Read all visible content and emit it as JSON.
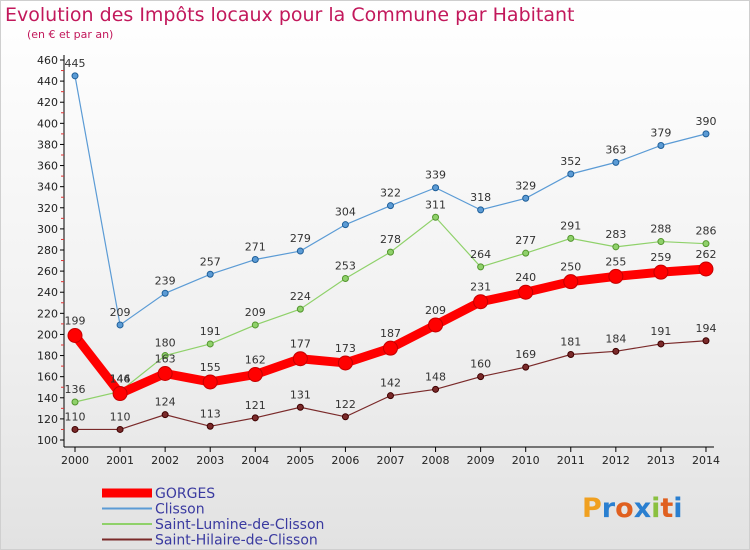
{
  "chart_data": {
    "type": "line",
    "title": "Evolution des Impôts locaux pour la Commune par Habitant",
    "subtitle": "(en € et par an)",
    "x": [
      "2000",
      "2001",
      "2002",
      "2003",
      "2004",
      "2005",
      "2006",
      "2007",
      "2008",
      "2009",
      "2010",
      "2011",
      "2012",
      "2013",
      "2014"
    ],
    "yticks": [
      100,
      120,
      140,
      160,
      180,
      200,
      220,
      240,
      260,
      280,
      300,
      320,
      340,
      360,
      380,
      400,
      420,
      440,
      460
    ],
    "ylim": [
      100,
      460
    ],
    "grid": false,
    "legend_position": "bottom-left",
    "series": [
      {
        "name": "Saint-Hilaire-de-Clisson",
        "color": "#7a2a2a",
        "emphasis": false,
        "values": [
          110,
          110,
          124,
          113,
          121,
          131,
          122,
          142,
          148,
          160,
          169,
          181,
          184,
          191,
          194
        ],
        "labels": [
          "110",
          "110",
          "124",
          "113",
          "121",
          "131",
          "122",
          "142",
          "148",
          "160",
          "169",
          "181",
          "184",
          "191",
          "194"
        ]
      },
      {
        "name": "Saint-Lumine-de-Clisson",
        "color": "#8fd16a",
        "emphasis": false,
        "values": [
          136,
          146,
          180,
          191,
          209,
          224,
          253,
          278,
          311,
          264,
          277,
          291,
          283,
          288,
          286
        ],
        "labels": [
          "136",
          "146",
          "180",
          "191",
          "209",
          "224",
          "253",
          "278",
          "311",
          "264",
          "277",
          "291",
          "283",
          "288",
          "286"
        ]
      },
      {
        "name": "Clisson",
        "color": "#5b9bd5",
        "emphasis": false,
        "values": [
          445,
          209,
          239,
          257,
          271,
          279,
          304,
          322,
          339,
          318,
          329,
          352,
          363,
          379,
          390
        ],
        "labels": [
          "445",
          "209",
          "239",
          "257",
          "271",
          "279",
          "304",
          "322",
          "339",
          "318",
          "329",
          "352",
          "363",
          "379",
          "390"
        ]
      },
      {
        "name": "GORGES",
        "color": "#ff0000",
        "emphasis": true,
        "values": [
          199,
          144,
          163,
          155,
          162,
          177,
          173,
          187,
          209,
          231,
          240,
          250,
          255,
          259,
          262
        ],
        "labels": [
          "199",
          "144",
          "163",
          "155",
          "162",
          "177",
          "173",
          "187",
          "209",
          "231",
          "240",
          "250",
          "255",
          "259",
          "262"
        ]
      }
    ],
    "legend_order": [
      "GORGES",
      "Clisson",
      "Saint-Lumine-de-Clisson",
      "Saint-Hilaire-de-Clisson"
    ]
  },
  "logo": {
    "text": "Proxiti",
    "colors": [
      "#f0a020",
      "#2a7fd0",
      "#e06020",
      "#2a7fd0",
      "#8ac040",
      "#e06020",
      "#2a7fd0"
    ]
  }
}
